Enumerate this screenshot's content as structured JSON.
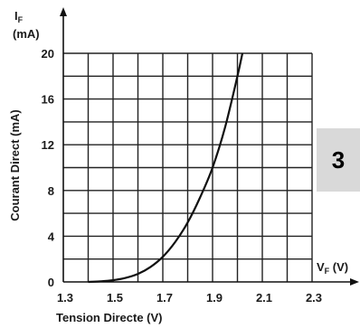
{
  "figure_number": "3",
  "chart_data": {
    "type": "line",
    "y_symbol": "I",
    "y_symbol_sub": "F",
    "y_unit": "(mA)",
    "ylabel": "Courant Direct  (mA)",
    "x_symbol": "V",
    "x_symbol_sub": "F",
    "x_unit": " (V)",
    "xlabel": "Tension Directe (V)",
    "xlim": [
      1.3,
      2.3
    ],
    "ylim": [
      0,
      20
    ],
    "grid": true,
    "x_ticks": [
      "1.3",
      "1.5",
      "1.7",
      "1.9",
      "2.1",
      "2.3"
    ],
    "y_ticks": [
      "0",
      "4",
      "8",
      "12",
      "16",
      "20"
    ],
    "series": [
      {
        "x": [
          1.4,
          1.45,
          1.5,
          1.55,
          1.6,
          1.65,
          1.7,
          1.75,
          1.8,
          1.85,
          1.9,
          1.95,
          2.0,
          2.02
        ],
        "y": [
          0.0,
          0.05,
          0.15,
          0.35,
          0.7,
          1.3,
          2.2,
          3.5,
          5.2,
          7.4,
          10.0,
          13.5,
          18.0,
          20.0
        ]
      }
    ]
  }
}
